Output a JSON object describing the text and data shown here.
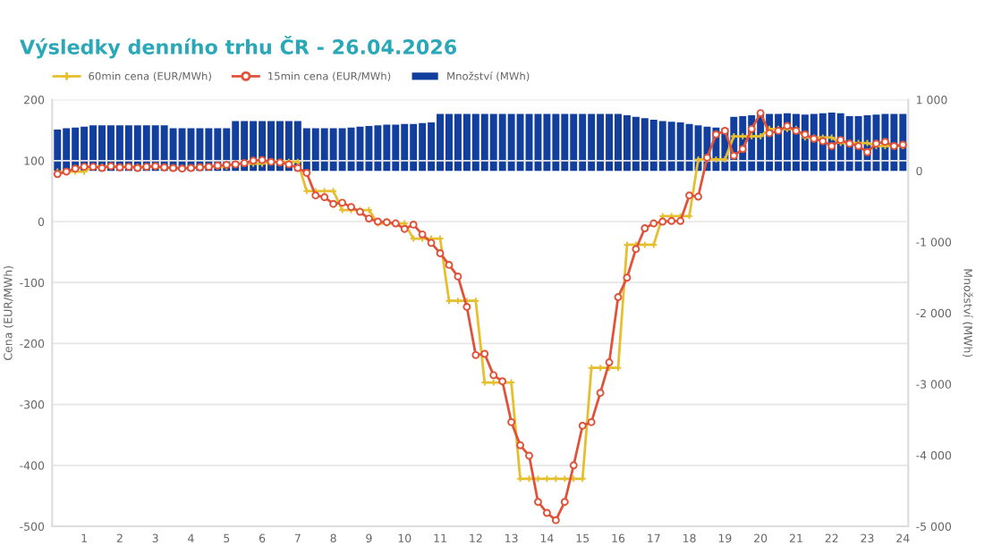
{
  "chart_data": {
    "type": "line",
    "title": "Výsledky denního trhu ČR - 26.04.2026",
    "categories": [
      null,
      null,
      null,
      "1",
      null,
      null,
      null,
      "2",
      null,
      null,
      null,
      "3",
      null,
      null,
      null,
      "4",
      null,
      null,
      null,
      "5",
      null,
      null,
      null,
      "6",
      null,
      null,
      null,
      "7",
      null,
      null,
      null,
      "8",
      null,
      null,
      null,
      "9",
      null,
      null,
      null,
      "10",
      null,
      null,
      null,
      "11",
      null,
      null,
      null,
      "12",
      null,
      null,
      null,
      "13",
      null,
      null,
      null,
      "14",
      null,
      null,
      null,
      "15",
      null,
      null,
      null,
      "16",
      null,
      null,
      null,
      "17",
      null,
      null,
      null,
      "18",
      null,
      null,
      null,
      "19",
      null,
      null,
      null,
      "20",
      null,
      null,
      null,
      "21",
      null,
      null,
      null,
      "22",
      null,
      null,
      null,
      "23",
      null,
      null,
      null,
      "24"
    ],
    "series": [
      {
        "name": "60min cena (EUR/MWh)",
        "color": "#e6bf2e",
        "marker": "cross",
        "values": [
          82,
          82,
          82,
          82,
          90,
          90,
          90,
          90,
          90,
          90,
          90,
          90,
          88,
          88,
          88,
          88,
          90,
          90,
          90,
          90,
          95,
          95,
          95,
          95,
          98,
          98,
          98,
          98,
          50,
          50,
          50,
          50,
          19,
          19,
          19,
          19,
          -3,
          -3,
          -3,
          -3,
          -28,
          -28,
          -28,
          -28,
          -130,
          -130,
          -130,
          -130,
          -264,
          -264,
          -264,
          -264,
          -422,
          -422,
          -422,
          -422,
          -422,
          -422,
          -422,
          -422,
          -240,
          -240,
          -240,
          -240,
          -38,
          -38,
          -38,
          -38,
          9,
          9,
          9,
          9,
          102,
          102,
          102,
          102,
          140,
          140,
          140,
          140,
          152,
          152,
          152,
          152,
          138,
          138,
          138,
          138,
          129,
          129,
          129,
          129,
          124,
          124,
          124,
          124
        ]
      },
      {
        "name": "15min cena (EUR/MWh)",
        "color": "#e0533a",
        "marker": "circle",
        "values": [
          78,
          82,
          87,
          90,
          90,
          88,
          91,
          89,
          90,
          88,
          90,
          91,
          89,
          88,
          87,
          88,
          89,
          90,
          92,
          93,
          94,
          96,
          100,
          101,
          98,
          97,
          94,
          88,
          80,
          43,
          40,
          29,
          31,
          24,
          16,
          5,
          0,
          -1,
          -3,
          -12,
          -5,
          -21,
          -35,
          -52,
          -71,
          -90,
          -140,
          -219,
          -217,
          -252,
          -262,
          -329,
          -367,
          -384,
          -460,
          -478,
          -490,
          -460,
          -400,
          -335,
          -329,
          -281,
          -231,
          -124,
          -92,
          -45,
          -11,
          -3,
          0,
          1,
          1,
          43,
          41,
          105,
          143,
          149,
          108,
          119,
          152,
          178,
          145,
          149,
          157,
          149,
          143,
          136,
          132,
          124,
          134,
          128,
          124,
          114,
          128,
          131,
          124,
          126
        ]
      },
      {
        "name": "Množství (MWh)",
        "type": "bar",
        "axis": "y2",
        "color": "#123f9e",
        "values": [
          580,
          600,
          610,
          620,
          640,
          640,
          640,
          640,
          640,
          640,
          640,
          640,
          640,
          600,
          600,
          600,
          600,
          600,
          600,
          600,
          700,
          700,
          700,
          700,
          700,
          700,
          700,
          700,
          600,
          600,
          600,
          600,
          600,
          610,
          620,
          630,
          640,
          650,
          650,
          660,
          660,
          670,
          680,
          800,
          800,
          800,
          800,
          800,
          800,
          800,
          800,
          800,
          800,
          800,
          800,
          800,
          800,
          800,
          800,
          800,
          800,
          800,
          800,
          800,
          780,
          760,
          740,
          720,
          700,
          690,
          680,
          660,
          640,
          620,
          610,
          600,
          760,
          770,
          780,
          790,
          800,
          800,
          810,
          800,
          790,
          800,
          810,
          820,
          810,
          770,
          770,
          780,
          790,
          800,
          800,
          800
        ]
      }
    ],
    "ylabel": "Cena (EUR/MWh)",
    "y2label": "Množství (MWh)",
    "ylim": [
      -500,
      200
    ],
    "yticks": [
      -500,
      -400,
      -300,
      -200,
      -100,
      0,
      100,
      200
    ],
    "y2lim": [
      -5000,
      1000
    ],
    "y2ticks": [
      {
        "value": -5000,
        "label": "-5 000"
      },
      {
        "value": -4000,
        "label": "-4 000"
      },
      {
        "value": -3000,
        "label": "-3 000"
      },
      {
        "value": -2000,
        "label": "-2 000"
      },
      {
        "value": -1000,
        "label": "-1 000"
      },
      {
        "value": 0,
        "label": "0"
      },
      {
        "value": 1000,
        "label": "1 000"
      }
    ],
    "grid": "y",
    "legend": "top left"
  }
}
